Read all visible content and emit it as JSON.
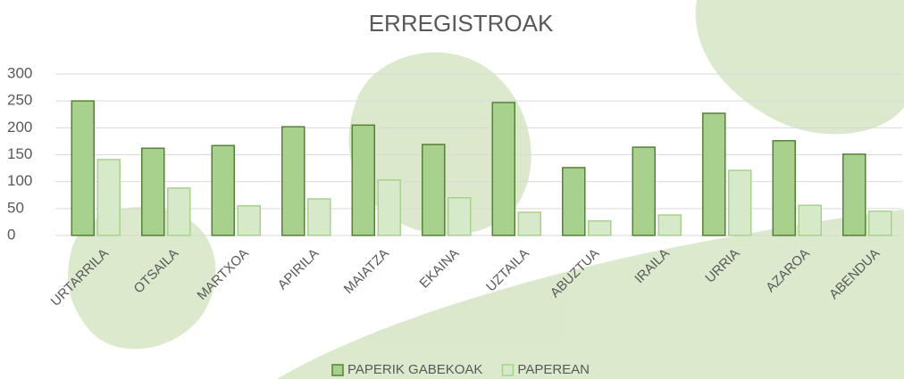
{
  "chart_data": {
    "type": "bar",
    "title": "ERREGISTROAK",
    "categories": [
      "URTARRILA",
      "OTSAILA",
      "MARTXOA",
      "APIRILA",
      "MAIATZA",
      "EKAINA",
      "UZTAILA",
      "ABUZTUA",
      "IRAILA",
      "URRIA",
      "AZAROA",
      "ABENDUA"
    ],
    "series": [
      {
        "name": "PAPERIK GABEKOAK",
        "color": "#a9d18e",
        "values": [
          250,
          162,
          167,
          202,
          205,
          169,
          247,
          126,
          164,
          227,
          176,
          151
        ]
      },
      {
        "name": "PAPEREAN",
        "color": "#d6e9c9",
        "values": [
          141,
          88,
          55,
          68,
          103,
          70,
          43,
          27,
          38,
          121,
          56,
          45
        ]
      }
    ],
    "ylim": [
      0,
      300
    ],
    "yticks": [
      0,
      50,
      100,
      150,
      200,
      250,
      300
    ],
    "grid": true,
    "legend": "bottom"
  }
}
